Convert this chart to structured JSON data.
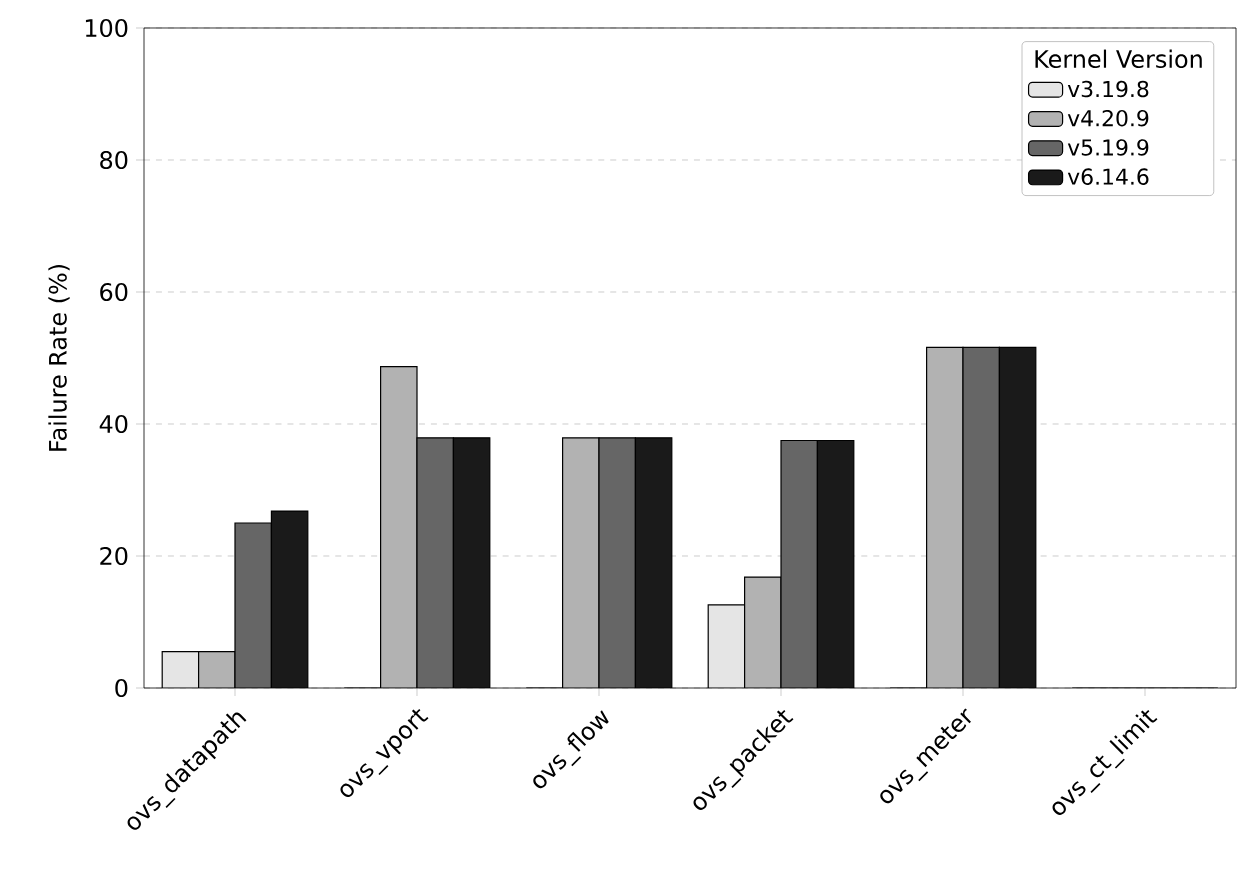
{
  "chart_data": {
    "type": "bar",
    "ylabel": "Failure Rate (%)",
    "legend_title": "Kernel Version",
    "categories": [
      "ovs_datapath",
      "ovs_vport",
      "ovs_flow",
      "ovs_packet",
      "ovs_meter",
      "ovs_ct_limit"
    ],
    "series": [
      {
        "name": "v3.19.8",
        "color": "#e5e5e5",
        "values": [
          5.5,
          0,
          0,
          12.6,
          0,
          0
        ]
      },
      {
        "name": "v4.20.9",
        "color": "#b2b2b2",
        "values": [
          5.5,
          48.7,
          37.9,
          16.8,
          51.6,
          0
        ]
      },
      {
        "name": "v5.19.9",
        "color": "#666666",
        "values": [
          25.0,
          37.9,
          37.9,
          37.5,
          51.6,
          0
        ]
      },
      {
        "name": "v6.14.6",
        "color": "#1a1a1a",
        "values": [
          26.8,
          37.9,
          37.9,
          37.5,
          51.6,
          0
        ]
      }
    ],
    "ylim": [
      0,
      100
    ],
    "yticks": [
      0,
      20,
      40,
      60,
      80,
      100
    ],
    "grid": "y",
    "legend": "top right"
  }
}
